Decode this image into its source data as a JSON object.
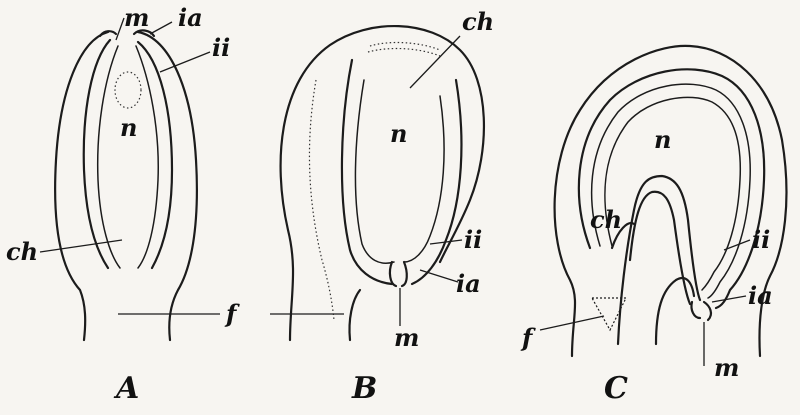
{
  "figures": [
    {
      "caption": "A",
      "labels": {
        "m": "m",
        "ia": "ia",
        "ii": "ii",
        "n": "n",
        "ch": "ch",
        "f": "f"
      }
    },
    {
      "caption": "B",
      "labels": {
        "ch": "ch",
        "n": "n",
        "ii": "ii",
        "ia": "ia",
        "m": "m"
      }
    },
    {
      "caption": "C",
      "labels": {
        "n": "n",
        "ch": "ch",
        "ii": "ii",
        "ia": "ia",
        "f": "f",
        "m": "m"
      }
    }
  ]
}
